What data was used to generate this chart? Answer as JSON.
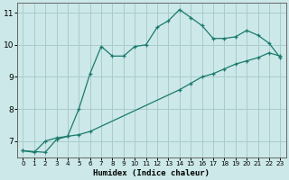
{
  "xlabel": "Humidex (Indice chaleur)",
  "background_color": "#cce8e8",
  "grid_color": "#aacccc",
  "line_color": "#1a7a6e",
  "xlim": [
    -0.5,
    23.5
  ],
  "ylim": [
    6.5,
    11.3
  ],
  "xticks": [
    0,
    1,
    2,
    3,
    4,
    5,
    6,
    7,
    8,
    9,
    10,
    11,
    12,
    13,
    14,
    15,
    16,
    17,
    18,
    19,
    20,
    21,
    22,
    23
  ],
  "yticks": [
    7,
    8,
    9,
    10,
    11
  ],
  "line1_x": [
    0,
    1,
    2,
    3,
    4,
    5,
    6,
    7,
    8,
    9,
    10,
    11,
    12,
    13,
    14,
    15,
    16,
    17,
    18,
    19,
    20,
    21,
    22,
    23
  ],
  "line1_y": [
    6.7,
    6.65,
    7.0,
    7.1,
    7.15,
    8.0,
    9.1,
    9.95,
    9.65,
    9.65,
    9.95,
    10.0,
    10.55,
    10.75,
    11.1,
    10.85,
    10.6,
    10.2,
    10.2,
    10.25,
    10.45,
    10.3,
    10.05,
    9.6
  ],
  "line2_x": [
    0,
    2,
    3,
    4,
    5,
    6,
    14,
    15,
    16,
    17,
    18,
    19,
    20,
    21,
    22,
    23
  ],
  "line2_y": [
    6.7,
    6.65,
    7.05,
    7.15,
    7.2,
    7.3,
    8.6,
    8.8,
    9.0,
    9.1,
    9.25,
    9.4,
    9.5,
    9.6,
    9.75,
    9.65
  ]
}
